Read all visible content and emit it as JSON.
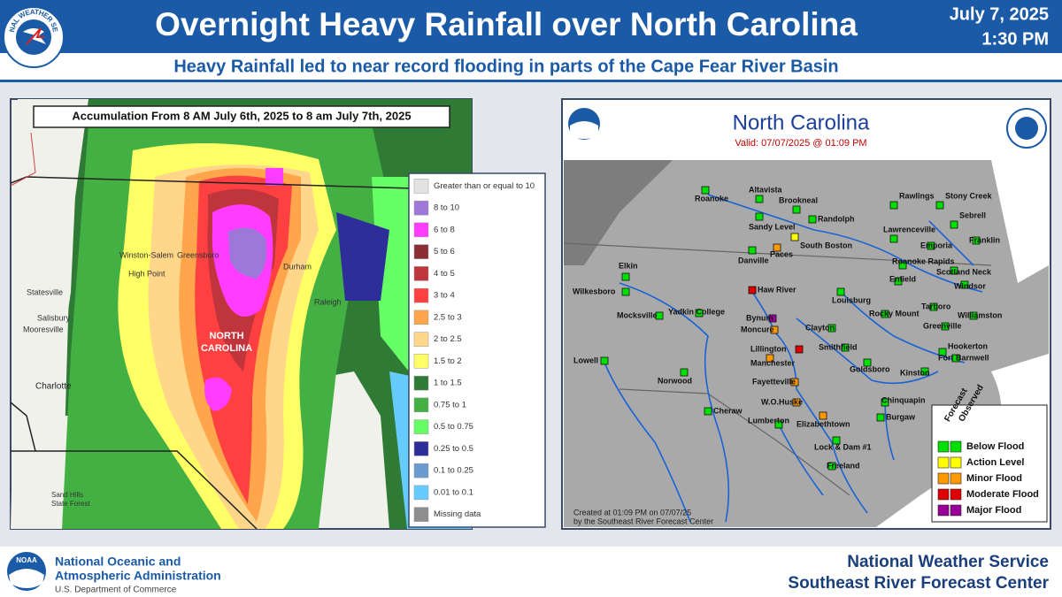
{
  "header": {
    "logo_text": "NATIONAL WEATHER SERVICE",
    "title": "Overnight Heavy Rainfall over North Carolina",
    "date": "July 7, 2025",
    "time": "1:30 PM",
    "subtitle": "Heavy Rainfall led to near record flooding in parts of the Cape Fear River Basin"
  },
  "rain_map": {
    "caption": "Accumulation From 8 AM July 6th, 2025 to 8 am July 7th, 2025",
    "places": [
      "Winston-Salem",
      "Greensboro",
      "High Point",
      "Durham",
      "Raleigh",
      "Statesville",
      "Salisbury",
      "Mooresville",
      "Charlotte",
      "NORTH",
      "CAROLINA",
      "Sand Hills",
      "State Forest"
    ],
    "legend": [
      {
        "label": "Greater than or equal to 10",
        "color": "#e2e2e2"
      },
      {
        "label": "8 to 10",
        "color": "#9e78d8"
      },
      {
        "label": "6 to 8",
        "color": "#ff3cff"
      },
      {
        "label": "5 to 6",
        "color": "#8a2f35"
      },
      {
        "label": "4 to 5",
        "color": "#c0343c"
      },
      {
        "label": "3 to 4",
        "color": "#ff4040"
      },
      {
        "label": "2.5 to 3",
        "color": "#ffa64d"
      },
      {
        "label": "2 to 2.5",
        "color": "#ffd68a"
      },
      {
        "label": "1.5 to 2",
        "color": "#ffff66"
      },
      {
        "label": "1 to 1.5",
        "color": "#2f7a35"
      },
      {
        "label": "0.75 to 1",
        "color": "#43b043"
      },
      {
        "label": "0.5 to 0.75",
        "color": "#66ff66"
      },
      {
        "label": "0.25 to 0.5",
        "color": "#2e2e9a"
      },
      {
        "label": "0.1 to 0.25",
        "color": "#6a9ad0"
      },
      {
        "label": "0.01 to 0.1",
        "color": "#66ccff"
      },
      {
        "label": "Missing data",
        "color": "#8e8e8e"
      }
    ]
  },
  "river_map": {
    "title": "North Carolina",
    "valid": "Valid: 07/07/2025 @ 01:09 PM",
    "credit": [
      "Created at 01:09 PM on 07/07/25",
      "by the Southeast River Forecast Center"
    ],
    "legend_headers": [
      "Forecast",
      "Observed"
    ],
    "legend": [
      {
        "label": "Below Flood",
        "color": "#00e000"
      },
      {
        "label": "Action Level",
        "color": "#ffff00"
      },
      {
        "label": "Minor Flood",
        "color": "#ff9900"
      },
      {
        "label": "Moderate Flood",
        "color": "#e00000"
      },
      {
        "label": "Major Flood",
        "color": "#990099"
      }
    ],
    "gauges": [
      {
        "name": "Roanoke",
        "status": "Below Flood"
      },
      {
        "name": "Altavista",
        "status": "Below Flood"
      },
      {
        "name": "Brookneal",
        "status": "Below Flood"
      },
      {
        "name": "Sandy Level",
        "status": "Below Flood"
      },
      {
        "name": "Randolph",
        "status": "Below Flood"
      },
      {
        "name": "Rawlings",
        "status": "Below Flood"
      },
      {
        "name": "Stony Creek",
        "status": "Below Flood"
      },
      {
        "name": "Sebrell",
        "status": "Below Flood"
      },
      {
        "name": "Franklin",
        "status": "Below Flood"
      },
      {
        "name": "Lawrenceville",
        "status": "Below Flood"
      },
      {
        "name": "Emporia",
        "status": "Below Flood"
      },
      {
        "name": "Danville",
        "status": "Below Flood"
      },
      {
        "name": "Paces",
        "status": "Minor Flood"
      },
      {
        "name": "South Boston",
        "status": "Action Level"
      },
      {
        "name": "Roanoke Rapids",
        "status": "Below Flood"
      },
      {
        "name": "Scotland Neck",
        "status": "Below Flood"
      },
      {
        "name": "Windsor",
        "status": "Below Flood"
      },
      {
        "name": "Elkin",
        "status": "Below Flood"
      },
      {
        "name": "Wilkesboro",
        "status": "Below Flood"
      },
      {
        "name": "Haw River",
        "status": "Moderate Flood"
      },
      {
        "name": "Enfield",
        "status": "Below Flood"
      },
      {
        "name": "Louisburg",
        "status": "Below Flood"
      },
      {
        "name": "Tarboro",
        "status": "Below Flood"
      },
      {
        "name": "Rocky Mount",
        "status": "Below Flood"
      },
      {
        "name": "Williamston",
        "status": "Below Flood"
      },
      {
        "name": "Mocksville",
        "status": "Below Flood"
      },
      {
        "name": "Yadkin College",
        "status": "Below Flood"
      },
      {
        "name": "Bynum",
        "status": "Major Flood"
      },
      {
        "name": "Moncure",
        "status": "Minor Flood"
      },
      {
        "name": "Clayton",
        "status": "Below Flood"
      },
      {
        "name": "Greenville",
        "status": "Below Flood"
      },
      {
        "name": "Smithfield",
        "status": "Below Flood"
      },
      {
        "name": "Lillington",
        "status": "Moderate Flood"
      },
      {
        "name": "Hookerton",
        "status": "Below Flood"
      },
      {
        "name": "Manchester",
        "status": "Minor Flood"
      },
      {
        "name": "Fort Barnwell",
        "status": "Below Flood"
      },
      {
        "name": "Goldsboro",
        "status": "Below Flood"
      },
      {
        "name": "Lowell",
        "status": "Below Flood"
      },
      {
        "name": "Kinston",
        "status": "Below Flood"
      },
      {
        "name": "Norwood",
        "status": "Below Flood"
      },
      {
        "name": "Fayetteville",
        "status": "Minor Flood"
      },
      {
        "name": "Chinquapin",
        "status": "Below Flood"
      },
      {
        "name": "W.O.Huske",
        "status": "Minor Flood"
      },
      {
        "name": "Cheraw",
        "status": "Below Flood"
      },
      {
        "name": "Burgaw",
        "status": "Below Flood"
      },
      {
        "name": "Elizabethtown",
        "status": "Minor Flood"
      },
      {
        "name": "Lumberton",
        "status": "Below Flood"
      },
      {
        "name": "Lock & Dam #1",
        "status": "Below Flood"
      },
      {
        "name": "Freeland",
        "status": "Below Flood"
      }
    ]
  },
  "footer": {
    "noaa": "NOAA",
    "agency": [
      "National Oceanic and",
      "Atmospheric Administration"
    ],
    "department": "U.S. Department of Commerce",
    "office": [
      "National Weather Service",
      "Southeast River Forecast Center"
    ]
  }
}
